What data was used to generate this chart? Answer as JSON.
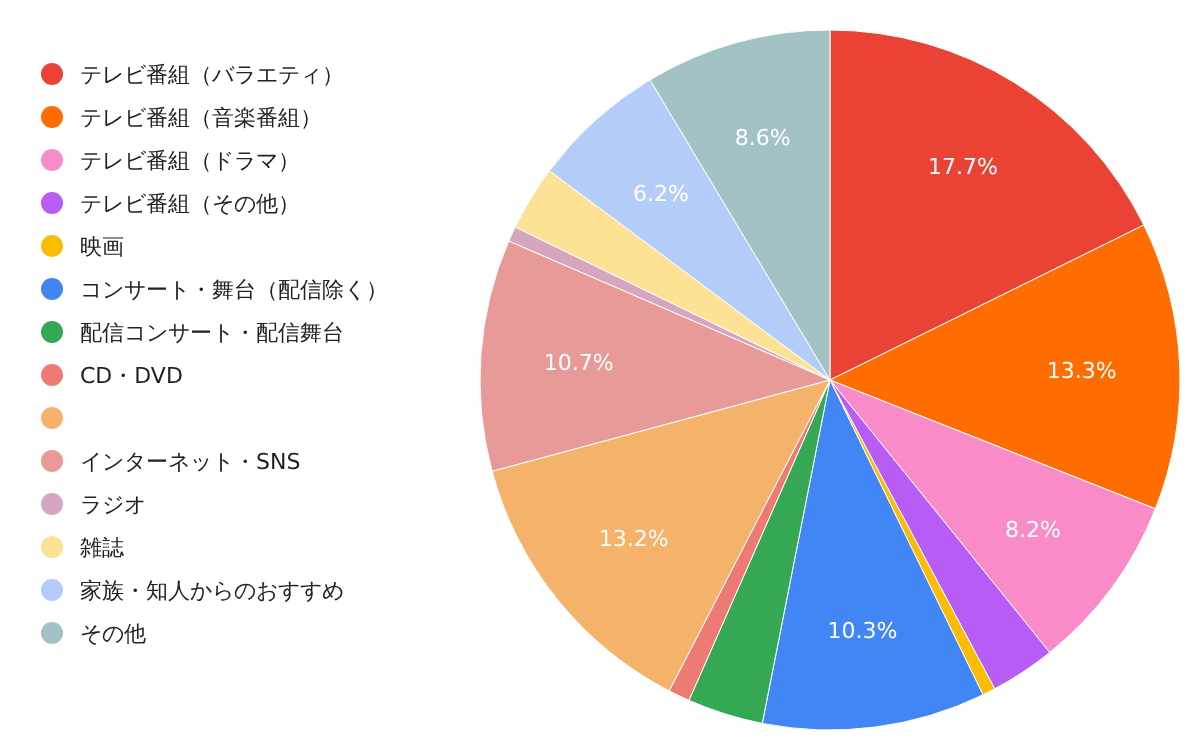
{
  "chart_data": {
    "type": "pie",
    "categories": [
      "テレビ番組（バラエティ）",
      "テレビ番組（音楽番組）",
      "テレビ番組（ドラマ）",
      "テレビ番組（その他）",
      "映画",
      "コンサート・舞台（配信除く）",
      "配信コンサート・配信舞台",
      "CD・DVD",
      null,
      "インターネット・SNS",
      "ラジオ",
      "雑誌",
      "家族・知人からのおすすめ",
      "その他"
    ],
    "values": [
      17.7,
      13.3,
      8.2,
      3.0,
      0.6,
      10.3,
      3.5,
      1.0,
      13.2,
      10.7,
      0.7,
      3.0,
      6.2,
      8.6
    ],
    "colors": [
      "#ea4335",
      "#ff6d01",
      "#f98cc8",
      "#b75cf5",
      "#fbbc04",
      "#4285f4",
      "#34a853",
      "#ee7b73",
      "#f5b26b",
      "#e79a98",
      "#d5a6bd",
      "#fde295",
      "#b4cdf8",
      "#a3c2c6"
    ],
    "value_labels": [
      "17.7%",
      "13.3%",
      "8.2%",
      null,
      null,
      "10.3%",
      null,
      null,
      "13.2%",
      "10.7%",
      null,
      null,
      "6.2%",
      "8.6%"
    ],
    "legend": "left"
  }
}
